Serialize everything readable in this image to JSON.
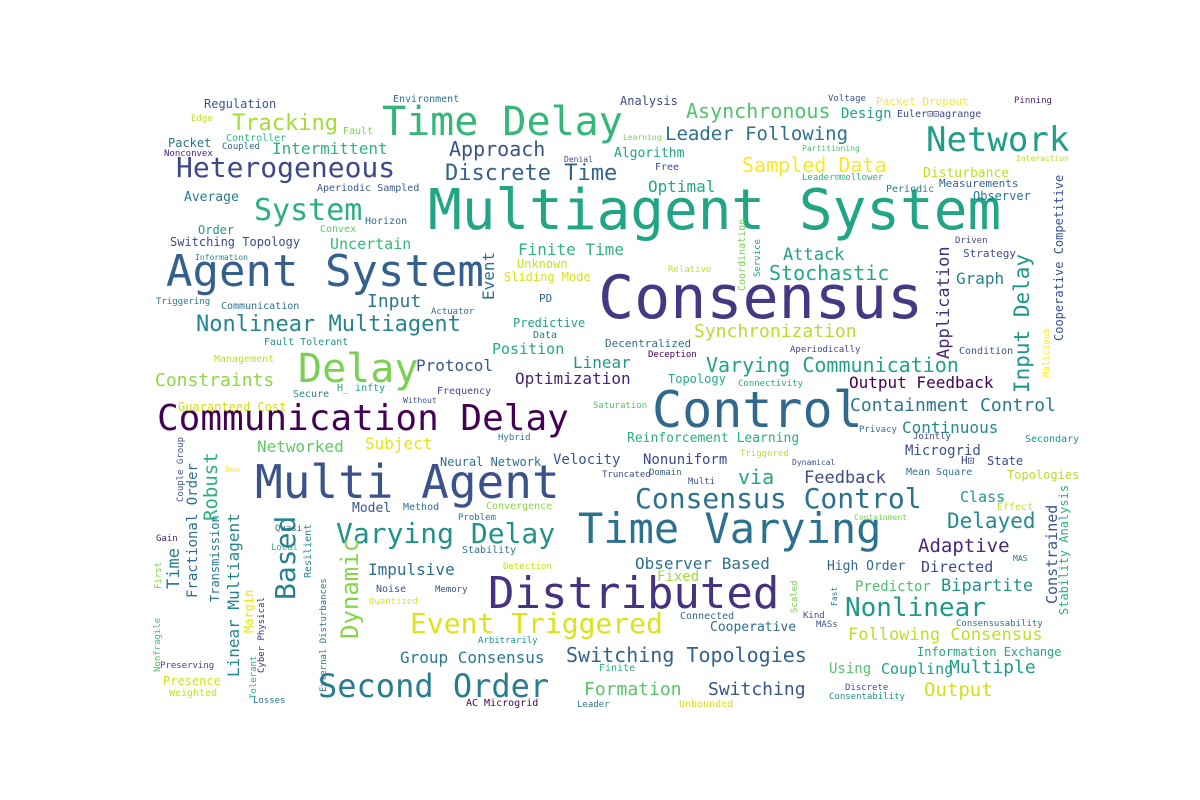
{
  "words": [
    {
      "text": "Multiagent System",
      "color": "#21a585"
    },
    {
      "text": "Consensus",
      "color": "#443983"
    },
    {
      "text": "Control",
      "color": "#31688e"
    },
    {
      "text": "Multi Agent",
      "color": "#3b528b"
    },
    {
      "text": "Time Varying",
      "color": "#2c728e"
    },
    {
      "text": "Agent System",
      "color": "#355f8d"
    },
    {
      "text": "Communication Delay",
      "color": "#440154"
    },
    {
      "text": "Distributed",
      "color": "#46327e"
    },
    {
      "text": "Time Delay",
      "color": "#35b779"
    },
    {
      "text": "Network",
      "color": "#1f9e89"
    },
    {
      "text": "Heterogeneous",
      "color": "#3e4989"
    },
    {
      "text": "Delay",
      "color": "#7ad151"
    },
    {
      "text": "Second Order",
      "color": "#287d8e"
    },
    {
      "text": "Based",
      "color": "#26828e"
    },
    {
      "text": "Event Triggered",
      "color": "#dde318"
    },
    {
      "text": "System",
      "color": "#2ab07f"
    },
    {
      "text": "Varying Delay",
      "color": "#21918c"
    },
    {
      "text": "Consensus Control",
      "color": "#2c728e"
    },
    {
      "text": "Tracking",
      "color": "#a5db36"
    },
    {
      "text": "Discrete Time",
      "color": "#33638d"
    },
    {
      "text": "Nonlinear Multiagent",
      "color": "#25848e"
    },
    {
      "text": "Nonlinear",
      "color": "#1f998a"
    },
    {
      "text": "Switching Topologies",
      "color": "#33638d"
    },
    {
      "text": "Sampled Data",
      "color": "#fde725"
    },
    {
      "text": "Synchronization",
      "color": "#b5de2b"
    },
    {
      "text": "Varying Communication",
      "color": "#20a386"
    },
    {
      "text": "Asynchronous",
      "color": "#4ec36b"
    },
    {
      "text": "Leader Following",
      "color": "#2d708e"
    },
    {
      "text": "Approach",
      "color": "#3b528b"
    },
    {
      "text": "Containment Control",
      "color": "#2a788e"
    },
    {
      "text": "Delayed",
      "color": "#238a8d"
    },
    {
      "text": "Adaptive",
      "color": "#482878"
    },
    {
      "text": "Dynamic",
      "color": "#86d549"
    },
    {
      "text": "Stochastic",
      "color": "#22a884"
    },
    {
      "text": "Constraints",
      "color": "#8fd744"
    },
    {
      "text": "Optimization",
      "color": "#482475"
    },
    {
      "text": "Input Delay",
      "color": "#1f968b"
    },
    {
      "text": "Intermittent",
      "color": "#2fb47c"
    },
    {
      "text": "Attack",
      "color": "#1fa088"
    },
    {
      "text": "Input",
      "color": "#2a788e"
    },
    {
      "text": "Uncertain",
      "color": "#35b779"
    },
    {
      "text": "Protocol",
      "color": "#39568c"
    },
    {
      "text": "Robust",
      "color": "#2ab07f"
    },
    {
      "text": "via",
      "color": "#20a386"
    },
    {
      "text": "Finite Time",
      "color": "#2fb47c"
    },
    {
      "text": "Optimal",
      "color": "#22a884"
    },
    {
      "text": "Application",
      "color": "#472d7b"
    },
    {
      "text": "Feedback",
      "color": "#3e4989"
    },
    {
      "text": "Output Feedback",
      "color": "#440154"
    },
    {
      "text": "Continuous",
      "color": "#238a8d"
    },
    {
      "text": "Formation",
      "color": "#54c568"
    },
    {
      "text": "Switching",
      "color": "#3b528b"
    },
    {
      "text": "Group Consensus",
      "color": "#2a788e"
    },
    {
      "text": "Observer Based",
      "color": "#2c728e"
    },
    {
      "text": "Impulsive",
      "color": "#2d708e"
    },
    {
      "text": "Networked",
      "color": "#5ec962"
    },
    {
      "text": "Subject",
      "color": "#e5e419"
    },
    {
      "text": "Position",
      "color": "#25ab82"
    },
    {
      "text": "Linear",
      "color": "#1f988b"
    },
    {
      "text": "Event",
      "color": "#2c728e"
    },
    {
      "text": "Output",
      "color": "#d0e11c"
    },
    {
      "text": "Multiple",
      "color": "#1f9e89"
    },
    {
      "text": "Following Consensus",
      "color": "#bddf26"
    },
    {
      "text": "Bipartite",
      "color": "#21918c"
    },
    {
      "text": "Graph",
      "color": "#26828e"
    },
    {
      "text": "Reinforcement Learning",
      "color": "#2ab07f"
    },
    {
      "text": "Velocity",
      "color": "#39568c"
    },
    {
      "text": "Nonuniform",
      "color": "#3e4989"
    },
    {
      "text": "Fractional Order",
      "color": "#2d708e"
    },
    {
      "text": "Linear Multiagent",
      "color": "#25848e"
    },
    {
      "text": "Time",
      "color": "#287d8e"
    },
    {
      "text": "Constrained",
      "color": "#3b528b"
    },
    {
      "text": "Directed",
      "color": "#3e4989"
    },
    {
      "text": "High Order",
      "color": "#31688e"
    },
    {
      "text": "Cooperative",
      "color": "#2d708e"
    },
    {
      "text": "Predictor",
      "color": "#4ac16d"
    },
    {
      "text": "Microgrid",
      "color": "#3b528b"
    },
    {
      "text": "State",
      "color": "#3e4989"
    },
    {
      "text": "Class",
      "color": "#1f988b"
    },
    {
      "text": "Coupling",
      "color": "#1f9e89"
    },
    {
      "text": "Using",
      "color": "#54c568"
    },
    {
      "text": "Information Exchange",
      "color": "#22a884"
    },
    {
      "text": "Stability Analysis",
      "color": "#2ab07f"
    },
    {
      "text": "Cooperative Competitive",
      "color": "#3b528b"
    },
    {
      "text": "Transmission",
      "color": "#2a788e"
    },
    {
      "text": "Fixed",
      "color": "#a0da39"
    },
    {
      "text": "Topology",
      "color": "#25ab82"
    },
    {
      "text": "Design",
      "color": "#20a386"
    },
    {
      "text": "Algorithm",
      "color": "#20a386"
    },
    {
      "text": "Regulation",
      "color": "#39568c"
    },
    {
      "text": "Average",
      "color": "#2a788e"
    },
    {
      "text": "Switching Topology",
      "color": "#3e4989"
    },
    {
      "text": "Packet",
      "color": "#2d708e"
    },
    {
      "text": "Predictive",
      "color": "#20a386"
    },
    {
      "text": "Model",
      "color": "#39568c"
    },
    {
      "text": "Order",
      "color": "#1f988b"
    },
    {
      "text": "Unknown",
      "color": "#c8e020"
    },
    {
      "text": "Sliding Mode",
      "color": "#d8e219"
    },
    {
      "text": "Disturbance",
      "color": "#bddf26"
    },
    {
      "text": "Measurements",
      "color": "#33638d"
    },
    {
      "text": "Observer",
      "color": "#2a788e"
    },
    {
      "text": "Strategy",
      "color": "#3e4989"
    },
    {
      "text": "Analysis",
      "color": "#3e4989"
    },
    {
      "text": "Environment",
      "color": "#2c728e"
    },
    {
      "text": "Packet Dropout",
      "color": "#fde725"
    },
    {
      "text": "Voltage",
      "color": "#3b528b"
    },
    {
      "text": "Pinning",
      "color": "#482475"
    },
    {
      "text": "Euler⊡⊡agrange",
      "color": "#3e4989"
    },
    {
      "text": "Partitioning",
      "color": "#4ac16d"
    },
    {
      "text": "Interaction",
      "color": "#b5de2b"
    },
    {
      "text": "Edge",
      "color": "#c8e020"
    },
    {
      "text": "Controller",
      "color": "#35b779"
    },
    {
      "text": "Fault",
      "color": "#7ad151"
    },
    {
      "text": "Coupled",
      "color": "#31688e"
    },
    {
      "text": "Nonconvex",
      "color": "#482878"
    },
    {
      "text": "Learning",
      "color": "#7ad151"
    },
    {
      "text": "Denial",
      "color": "#3e4989"
    },
    {
      "text": "Leader⊡⊡ollower",
      "color": "#2ab07f"
    },
    {
      "text": "Periodic",
      "color": "#2a788e"
    },
    {
      "text": "Aperiodic Sampled",
      "color": "#39568c"
    },
    {
      "text": "Horizon",
      "color": "#31688e"
    },
    {
      "text": "Convex",
      "color": "#5ec962"
    },
    {
      "text": "Information",
      "color": "#25848e"
    },
    {
      "text": "Triggering",
      "color": "#2a788e"
    },
    {
      "text": "Communication",
      "color": "#2c728e"
    },
    {
      "text": "Actuator",
      "color": "#2d708e"
    },
    {
      "text": "PD",
      "color": "#33638d"
    },
    {
      "text": "Fault Tolerant",
      "color": "#21918c"
    },
    {
      "text": "Management",
      "color": "#bddf26"
    },
    {
      "text": "Secure",
      "color": "#26828e"
    },
    {
      "text": "H_ infty",
      "color": "#20a386"
    },
    {
      "text": "Frequency",
      "color": "#3e4989"
    },
    {
      "text": "Without",
      "color": "#3b528b"
    },
    {
      "text": "Guaranteed Cost",
      "color": "#d0e11c"
    },
    {
      "text": "Hybrid",
      "color": "#2a788e"
    },
    {
      "text": "Decentralized",
      "color": "#2d708e"
    },
    {
      "text": "Deception",
      "color": "#440154"
    },
    {
      "text": "Data",
      "color": "#2a788e"
    },
    {
      "text": "Free",
      "color": "#3e4989"
    },
    {
      "text": "Relative",
      "color": "#c8e020"
    },
    {
      "text": "Coordination",
      "color": "#7ad151"
    },
    {
      "text": "Service",
      "color": "#20a386"
    },
    {
      "text": "Connectivity",
      "color": "#22a884"
    },
    {
      "text": "Aperiodically",
      "color": "#3e4989"
    },
    {
      "text": "Condition",
      "color": "#3b528b"
    },
    {
      "text": "Driven",
      "color": "#3e4989"
    },
    {
      "text": "Malicious",
      "color": "#fde725"
    },
    {
      "text": "Saturation",
      "color": "#54c568"
    },
    {
      "text": "Privacy",
      "color": "#2d708e"
    },
    {
      "text": "Jointly",
      "color": "#3e4989"
    },
    {
      "text": "Secondary",
      "color": "#21918c"
    },
    {
      "text": "Mean Square",
      "color": "#2c728e"
    },
    {
      "text": "Topologies",
      "color": "#b5de2b"
    },
    {
      "text": "H⊡",
      "color": "#3e4989"
    },
    {
      "text": "Triggered",
      "color": "#bddf26"
    },
    {
      "text": "Dynamical",
      "color": "#3b528b"
    },
    {
      "text": "Truncated",
      "color": "#3e4989"
    },
    {
      "text": "Domain",
      "color": "#33638d"
    },
    {
      "text": "Multi",
      "color": "#3b528b"
    },
    {
      "text": "Neural Network",
      "color": "#2d708e"
    },
    {
      "text": "Method",
      "color": "#2d708e"
    },
    {
      "text": "Convergence",
      "color": "#8fd744"
    },
    {
      "text": "Problem",
      "color": "#2a788e"
    },
    {
      "text": "Stability",
      "color": "#2c728e"
    },
    {
      "text": "Detection",
      "color": "#c8e020"
    },
    {
      "text": "Containment",
      "color": "#7ad151"
    },
    {
      "text": "Effect",
      "color": "#c8e020"
    },
    {
      "text": "MAS",
      "color": "#2a788e"
    },
    {
      "text": "Couple Group",
      "color": "#3b528b"
    },
    {
      "text": "New",
      "color": "#fde725"
    },
    {
      "text": "Gain",
      "color": "#482475"
    },
    {
      "text": "First",
      "color": "#7ad151"
    },
    {
      "text": "Nonfragile",
      "color": "#4ac16d"
    },
    {
      "text": "Preserving",
      "color": "#3e4989"
    },
    {
      "text": "Presence",
      "color": "#d0e11c"
    },
    {
      "text": "Weighted",
      "color": "#c8e020"
    },
    {
      "text": "Tolerant",
      "color": "#2ab07f"
    },
    {
      "text": "Losses",
      "color": "#2c728e"
    },
    {
      "text": "Cyber Physical",
      "color": "#482878"
    },
    {
      "text": "Margin",
      "color": "#e5e419"
    },
    {
      "text": "Quasi",
      "color": "#2c728e"
    },
    {
      "text": "Local",
      "color": "#35b779"
    },
    {
      "text": "Resilient",
      "color": "#25848e"
    },
    {
      "text": "External Disturbances",
      "color": "#2d708e"
    },
    {
      "text": "Noise",
      "color": "#3b528b"
    },
    {
      "text": "Quantized",
      "color": "#e5e419"
    },
    {
      "text": "Memory",
      "color": "#3b528b"
    },
    {
      "text": "Arbitrarily",
      "color": "#21918c"
    },
    {
      "text": "AC Microgrid",
      "color": "#440154"
    },
    {
      "text": "Finite",
      "color": "#2ab07f"
    },
    {
      "text": "Leader",
      "color": "#2a788e"
    },
    {
      "text": "Unbounded",
      "color": "#d8e219"
    },
    {
      "text": "Connected",
      "color": "#31688e"
    },
    {
      "text": "Scaled",
      "color": "#7ad151"
    },
    {
      "text": "Kind",
      "color": "#3e4989"
    },
    {
      "text": "MASs",
      "color": "#3b528b"
    },
    {
      "text": "Fast",
      "color": "#2a788e"
    },
    {
      "text": "Discrete",
      "color": "#3b528b"
    },
    {
      "text": "Consentability",
      "color": "#21918c"
    },
    {
      "text": "Consensusability",
      "color": "#2c728e"
    }
  ]
}
